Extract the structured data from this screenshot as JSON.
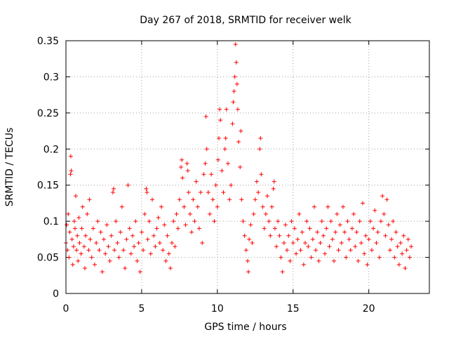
{
  "chart_data": {
    "type": "scatter",
    "title": "Day 267 of 2018, SRMTID for receiver welk",
    "xlabel": "GPS time / hours",
    "ylabel": "SRMTID / TECUs",
    "xlim": [
      0,
      24
    ],
    "ylim": [
      0,
      0.35
    ],
    "xticks": [
      0,
      5,
      10,
      15,
      20
    ],
    "xtick_labels": [
      "0",
      "5",
      "10",
      "15",
      "20"
    ],
    "yticks": [
      0,
      0.05,
      0.1,
      0.15,
      0.2,
      0.25,
      0.3,
      0.35
    ],
    "ytick_labels": [
      "0",
      "0.05",
      "0.1",
      "0.15",
      "0.2",
      "0.25",
      "0.3",
      "0.35"
    ],
    "grid": true,
    "marker": "+",
    "color": "#ff0000",
    "x_data_range": [
      0,
      22.8
    ],
    "series": [
      {
        "name": "SRMTID",
        "points": [
          [
            0.0,
            0.07
          ],
          [
            0.05,
            0.095
          ],
          [
            0.1,
            0.06
          ],
          [
            0.15,
            0.11
          ],
          [
            0.2,
            0.05
          ],
          [
            0.25,
            0.085
          ],
          [
            0.3,
            0.165
          ],
          [
            0.32,
            0.19
          ],
          [
            0.35,
            0.17
          ],
          [
            0.4,
            0.075
          ],
          [
            0.45,
            0.04
          ],
          [
            0.5,
            0.065
          ],
          [
            0.55,
            0.1
          ],
          [
            0.6,
            0.09
          ],
          [
            0.65,
            0.135
          ],
          [
            0.7,
            0.06
          ],
          [
            0.75,
            0.08
          ],
          [
            0.8,
            0.045
          ],
          [
            0.85,
            0.105
          ],
          [
            0.9,
            0.07
          ],
          [
            1.0,
            0.055
          ],
          [
            1.05,
            0.09
          ],
          [
            1.1,
            0.12
          ],
          [
            1.2,
            0.065
          ],
          [
            1.25,
            0.035
          ],
          [
            1.3,
            0.08
          ],
          [
            1.4,
            0.11
          ],
          [
            1.5,
            0.06
          ],
          [
            1.55,
            0.13
          ],
          [
            1.6,
            0.075
          ],
          [
            1.7,
            0.05
          ],
          [
            1.8,
            0.09
          ],
          [
            1.9,
            0.04
          ],
          [
            2.0,
            0.07
          ],
          [
            2.1,
            0.1
          ],
          [
            2.2,
            0.06
          ],
          [
            2.3,
            0.085
          ],
          [
            2.4,
            0.03
          ],
          [
            2.5,
            0.075
          ],
          [
            2.6,
            0.055
          ],
          [
            2.7,
            0.095
          ],
          [
            2.8,
            0.065
          ],
          [
            2.9,
            0.045
          ],
          [
            3.0,
            0.08
          ],
          [
            3.1,
            0.14
          ],
          [
            3.15,
            0.145
          ],
          [
            3.2,
            0.06
          ],
          [
            3.3,
            0.1
          ],
          [
            3.4,
            0.07
          ],
          [
            3.5,
            0.05
          ],
          [
            3.6,
            0.085
          ],
          [
            3.7,
            0.12
          ],
          [
            3.8,
            0.06
          ],
          [
            3.9,
            0.035
          ],
          [
            4.0,
            0.075
          ],
          [
            4.1,
            0.15
          ],
          [
            4.2,
            0.09
          ],
          [
            4.3,
            0.055
          ],
          [
            4.4,
            0.08
          ],
          [
            4.5,
            0.065
          ],
          [
            4.6,
            0.1
          ],
          [
            4.7,
            0.045
          ],
          [
            4.8,
            0.07
          ],
          [
            4.9,
            0.03
          ],
          [
            5.0,
            0.085
          ],
          [
            5.1,
            0.06
          ],
          [
            5.2,
            0.11
          ],
          [
            5.3,
            0.145
          ],
          [
            5.35,
            0.14
          ],
          [
            5.4,
            0.075
          ],
          [
            5.5,
            0.1
          ],
          [
            5.6,
            0.055
          ],
          [
            5.7,
            0.13
          ],
          [
            5.8,
            0.08
          ],
          [
            5.9,
            0.065
          ],
          [
            6.0,
            0.09
          ],
          [
            6.1,
            0.105
          ],
          [
            6.2,
            0.07
          ],
          [
            6.3,
            0.12
          ],
          [
            6.4,
            0.06
          ],
          [
            6.5,
            0.095
          ],
          [
            6.6,
            0.045
          ],
          [
            6.7,
            0.08
          ],
          [
            6.8,
            0.055
          ],
          [
            6.9,
            0.035
          ],
          [
            7.0,
            0.07
          ],
          [
            7.1,
            0.1
          ],
          [
            7.2,
            0.065
          ],
          [
            7.3,
            0.11
          ],
          [
            7.4,
            0.09
          ],
          [
            7.5,
            0.13
          ],
          [
            7.6,
            0.175
          ],
          [
            7.65,
            0.185
          ],
          [
            7.7,
            0.16
          ],
          [
            7.8,
            0.12
          ],
          [
            7.9,
            0.095
          ],
          [
            8.0,
            0.18
          ],
          [
            8.05,
            0.17
          ],
          [
            8.1,
            0.14
          ],
          [
            8.2,
            0.11
          ],
          [
            8.3,
            0.085
          ],
          [
            8.4,
            0.13
          ],
          [
            8.5,
            0.1
          ],
          [
            8.6,
            0.155
          ],
          [
            8.7,
            0.12
          ],
          [
            8.8,
            0.09
          ],
          [
            8.9,
            0.14
          ],
          [
            9.0,
            0.07
          ],
          [
            9.1,
            0.165
          ],
          [
            9.2,
            0.18
          ],
          [
            9.25,
            0.245
          ],
          [
            9.3,
            0.2
          ],
          [
            9.4,
            0.14
          ],
          [
            9.5,
            0.11
          ],
          [
            9.6,
            0.165
          ],
          [
            9.7,
            0.13
          ],
          [
            9.8,
            0.1
          ],
          [
            9.9,
            0.15
          ],
          [
            10.0,
            0.12
          ],
          [
            10.05,
            0.185
          ],
          [
            10.1,
            0.215
          ],
          [
            10.15,
            0.255
          ],
          [
            10.2,
            0.24
          ],
          [
            10.3,
            0.17
          ],
          [
            10.4,
            0.14
          ],
          [
            10.5,
            0.2
          ],
          [
            10.55,
            0.215
          ],
          [
            10.6,
            0.255
          ],
          [
            10.7,
            0.18
          ],
          [
            10.8,
            0.13
          ],
          [
            10.9,
            0.15
          ],
          [
            11.0,
            0.235
          ],
          [
            11.05,
            0.265
          ],
          [
            11.1,
            0.28
          ],
          [
            11.15,
            0.3
          ],
          [
            11.2,
            0.345
          ],
          [
            11.25,
            0.32
          ],
          [
            11.3,
            0.29
          ],
          [
            11.35,
            0.255
          ],
          [
            11.4,
            0.21
          ],
          [
            11.5,
            0.175
          ],
          [
            11.55,
            0.225
          ],
          [
            11.6,
            0.13
          ],
          [
            11.7,
            0.1
          ],
          [
            11.8,
            0.08
          ],
          [
            11.9,
            0.06
          ],
          [
            12.0,
            0.045
          ],
          [
            12.05,
            0.03
          ],
          [
            12.1,
            0.075
          ],
          [
            12.2,
            0.095
          ],
          [
            12.3,
            0.07
          ],
          [
            12.4,
            0.11
          ],
          [
            12.5,
            0.13
          ],
          [
            12.6,
            0.155
          ],
          [
            12.7,
            0.14
          ],
          [
            12.8,
            0.2
          ],
          [
            12.85,
            0.215
          ],
          [
            12.9,
            0.165
          ],
          [
            13.0,
            0.12
          ],
          [
            13.1,
            0.09
          ],
          [
            13.2,
            0.11
          ],
          [
            13.3,
            0.135
          ],
          [
            13.4,
            0.1
          ],
          [
            13.5,
            0.08
          ],
          [
            13.6,
            0.12
          ],
          [
            13.7,
            0.145
          ],
          [
            13.75,
            0.155
          ],
          [
            13.8,
            0.09
          ],
          [
            13.9,
            0.065
          ],
          [
            14.0,
            0.1
          ],
          [
            14.1,
            0.08
          ],
          [
            14.2,
            0.05
          ],
          [
            14.3,
            0.03
          ],
          [
            14.4,
            0.07
          ],
          [
            14.5,
            0.095
          ],
          [
            14.6,
            0.06
          ],
          [
            14.7,
            0.08
          ],
          [
            14.8,
            0.045
          ],
          [
            14.9,
            0.1
          ],
          [
            15.0,
            0.07
          ],
          [
            15.1,
            0.09
          ],
          [
            15.2,
            0.055
          ],
          [
            15.3,
            0.075
          ],
          [
            15.4,
            0.11
          ],
          [
            15.5,
            0.06
          ],
          [
            15.6,
            0.085
          ],
          [
            15.7,
            0.04
          ],
          [
            15.8,
            0.07
          ],
          [
            15.9,
            0.1
          ],
          [
            16.0,
            0.065
          ],
          [
            16.1,
            0.09
          ],
          [
            16.2,
            0.05
          ],
          [
            16.3,
            0.075
          ],
          [
            16.4,
            0.12
          ],
          [
            16.5,
            0.06
          ],
          [
            16.6,
            0.085
          ],
          [
            16.7,
            0.045
          ],
          [
            16.8,
            0.07
          ],
          [
            16.9,
            0.1
          ],
          [
            17.0,
            0.08
          ],
          [
            17.1,
            0.055
          ],
          [
            17.2,
            0.09
          ],
          [
            17.3,
            0.12
          ],
          [
            17.4,
            0.065
          ],
          [
            17.5,
            0.1
          ],
          [
            17.6,
            0.075
          ],
          [
            17.7,
            0.045
          ],
          [
            17.8,
            0.085
          ],
          [
            17.9,
            0.11
          ],
          [
            18.0,
            0.06
          ],
          [
            18.1,
            0.095
          ],
          [
            18.2,
            0.07
          ],
          [
            18.3,
            0.12
          ],
          [
            18.4,
            0.085
          ],
          [
            18.5,
            0.05
          ],
          [
            18.6,
            0.1
          ],
          [
            18.7,
            0.075
          ],
          [
            18.8,
            0.06
          ],
          [
            18.9,
            0.09
          ],
          [
            19.0,
            0.11
          ],
          [
            19.1,
            0.065
          ],
          [
            19.2,
            0.085
          ],
          [
            19.3,
            0.045
          ],
          [
            19.4,
            0.1
          ],
          [
            19.5,
            0.07
          ],
          [
            19.6,
            0.125
          ],
          [
            19.7,
            0.055
          ],
          [
            19.8,
            0.08
          ],
          [
            19.9,
            0.04
          ],
          [
            20.0,
            0.075
          ],
          [
            20.1,
            0.1
          ],
          [
            20.2,
            0.06
          ],
          [
            20.3,
            0.09
          ],
          [
            20.4,
            0.115
          ],
          [
            20.5,
            0.07
          ],
          [
            20.6,
            0.085
          ],
          [
            20.7,
            0.05
          ],
          [
            20.8,
            0.1
          ],
          [
            20.9,
            0.135
          ],
          [
            21.0,
            0.11
          ],
          [
            21.1,
            0.08
          ],
          [
            21.2,
            0.13
          ],
          [
            21.3,
            0.095
          ],
          [
            21.4,
            0.06
          ],
          [
            21.5,
            0.075
          ],
          [
            21.6,
            0.1
          ],
          [
            21.7,
            0.05
          ],
          [
            21.8,
            0.085
          ],
          [
            21.9,
            0.065
          ],
          [
            22.0,
            0.04
          ],
          [
            22.1,
            0.07
          ],
          [
            22.2,
            0.055
          ],
          [
            22.3,
            0.08
          ],
          [
            22.4,
            0.035
          ],
          [
            22.5,
            0.06
          ],
          [
            22.6,
            0.075
          ],
          [
            22.7,
            0.05
          ],
          [
            22.8,
            0.065
          ]
        ]
      }
    ]
  }
}
